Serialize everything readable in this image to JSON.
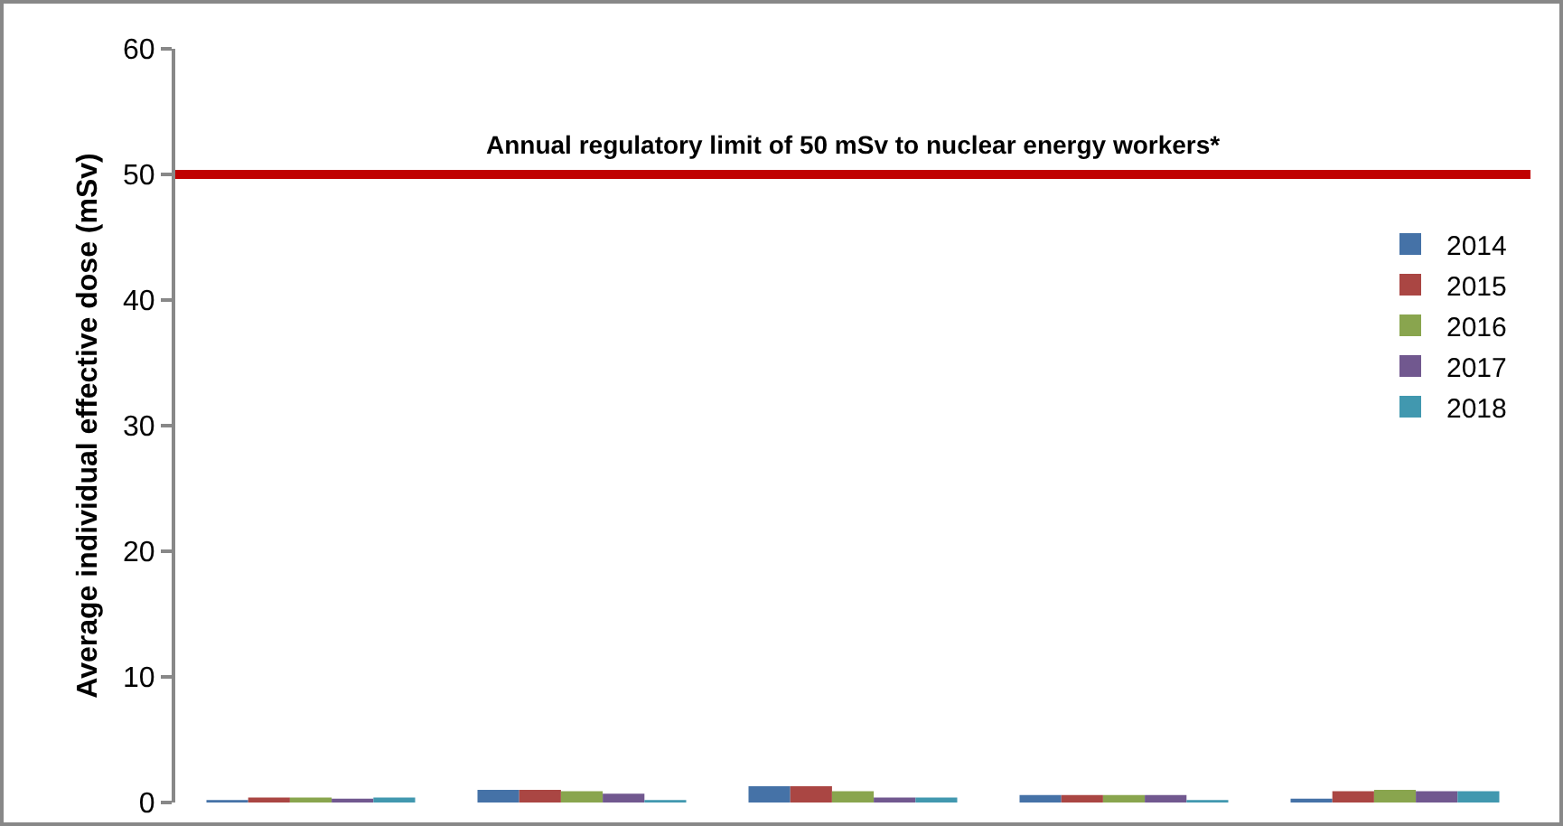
{
  "chart_data": {
    "type": "bar",
    "ylabel": "Average individual effective dose (mSv)",
    "categories": [
      null,
      null,
      null,
      null,
      null
    ],
    "series": [
      {
        "name": "2014",
        "color": "#4572a7",
        "values": [
          0.2,
          1.0,
          1.3,
          0.6,
          0.3
        ]
      },
      {
        "name": "2015",
        "color": "#aa4643",
        "values": [
          0.4,
          1.0,
          1.3,
          0.6,
          0.9
        ]
      },
      {
        "name": "2016",
        "color": "#89a54e",
        "values": [
          0.4,
          0.9,
          0.9,
          0.6,
          1.0
        ]
      },
      {
        "name": "2017",
        "color": "#71588f",
        "values": [
          0.3,
          0.7,
          0.4,
          0.6,
          0.9
        ]
      },
      {
        "name": "2018",
        "color": "#4198af",
        "values": [
          0.4,
          0.2,
          0.4,
          0.2,
          0.9
        ]
      }
    ],
    "ylim": [
      0,
      60
    ],
    "yticks": [
      0,
      10,
      20,
      30,
      40,
      50,
      60
    ],
    "ref_lines": [
      {
        "axis": "y",
        "value": 50,
        "label": "Annual regulatory limit of 50 mSv to nuclear energy workers*",
        "color": "#c00000"
      }
    ],
    "legend": "right",
    "grid": false
  }
}
